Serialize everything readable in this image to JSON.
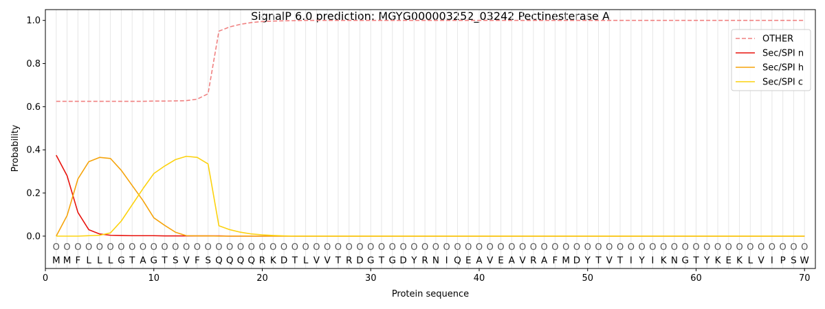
{
  "chart_data": {
    "type": "line",
    "title": "SignalP 6.0 prediction: MGYG000003252_03242 Pectinesterase A",
    "xlabel": "Protein sequence",
    "ylabel": "Probability",
    "xlim": [
      0,
      71
    ],
    "ylim": [
      -0.15,
      1.05
    ],
    "x_ticks": [
      0,
      10,
      20,
      30,
      40,
      50,
      60,
      70
    ],
    "y_ticks": [
      0.0,
      0.2,
      0.4,
      0.6,
      0.8,
      1.0
    ],
    "x_tick_labels": [
      "0",
      "10",
      "20",
      "30",
      "40",
      "50",
      "60",
      "70"
    ],
    "y_tick_labels": [
      "0.0",
      "0.2",
      "0.4",
      "0.6",
      "0.8",
      "1.0"
    ],
    "grid": "vertical lines at each residue",
    "legend_position": "top-right",
    "sequence": [
      "M",
      "M",
      "F",
      "L",
      "L",
      "L",
      "G",
      "T",
      "A",
      "G",
      "T",
      "S",
      "V",
      "F",
      "S",
      "Q",
      "Q",
      "Q",
      "Q",
      "R",
      "K",
      "D",
      "T",
      "L",
      "V",
      "V",
      "T",
      "R",
      "D",
      "G",
      "T",
      "G",
      "D",
      "Y",
      "R",
      "N",
      "I",
      "Q",
      "E",
      "A",
      "V",
      "E",
      "A",
      "V",
      "R",
      "A",
      "F",
      "M",
      "D",
      "Y",
      "T",
      "V",
      "T",
      "I",
      "Y",
      "I",
      "K",
      "N",
      "G",
      "T",
      "Y",
      "K",
      "E",
      "K",
      "L",
      "V",
      "I",
      "P",
      "S",
      "W"
    ],
    "predictions": [
      "O",
      "O",
      "O",
      "O",
      "O",
      "O",
      "O",
      "O",
      "O",
      "O",
      "O",
      "O",
      "O",
      "O",
      "O",
      "O",
      "O",
      "O",
      "O",
      "O",
      "O",
      "O",
      "O",
      "O",
      "O",
      "O",
      "O",
      "O",
      "O",
      "O",
      "O",
      "O",
      "O",
      "O",
      "O",
      "O",
      "O",
      "O",
      "O",
      "O",
      "O",
      "O",
      "O",
      "O",
      "O",
      "O",
      "O",
      "O",
      "O",
      "O",
      "O",
      "O",
      "O",
      "O",
      "O",
      "O",
      "O",
      "O",
      "O",
      "O",
      "O",
      "O",
      "O",
      "O",
      "O",
      "O",
      "O",
      "O",
      "O",
      "O"
    ],
    "series": [
      {
        "name": "OTHER",
        "color": "#f08080",
        "dashed": true,
        "values": [
          0.625,
          0.625,
          0.625,
          0.625,
          0.625,
          0.625,
          0.625,
          0.625,
          0.625,
          0.626,
          0.626,
          0.627,
          0.628,
          0.635,
          0.66,
          0.95,
          0.97,
          0.982,
          0.99,
          0.995,
          0.997,
          0.998,
          0.999,
          1.0,
          1.0,
          1.0,
          1.0,
          1.0,
          1.0,
          1.0,
          1.0,
          1.0,
          1.0,
          1.0,
          1.0,
          1.0,
          1.0,
          1.0,
          1.0,
          1.0,
          1.0,
          1.0,
          1.0,
          1.0,
          1.0,
          1.0,
          1.0,
          1.0,
          1.0,
          1.0,
          1.0,
          1.0,
          1.0,
          1.0,
          1.0,
          1.0,
          1.0,
          1.0,
          1.0,
          1.0,
          1.0,
          1.0,
          1.0,
          1.0,
          1.0,
          1.0,
          1.0,
          1.0,
          1.0,
          1.0
        ]
      },
      {
        "name": "Sec/SPI n",
        "color": "#e8120c",
        "dashed": false,
        "values": [
          0.375,
          0.28,
          0.11,
          0.03,
          0.01,
          0.004,
          0.003,
          0.002,
          0.002,
          0.002,
          0.001,
          0.001,
          0.001,
          0.001,
          0.001,
          0.001,
          0.0,
          0.0,
          0.0,
          0.0,
          0.0,
          0.0,
          0.0,
          0.0,
          0.0,
          0.0,
          0.0,
          0.0,
          0.0,
          0.0,
          0.0,
          0.0,
          0.0,
          0.0,
          0.0,
          0.0,
          0.0,
          0.0,
          0.0,
          0.0,
          0.0,
          0.0,
          0.0,
          0.0,
          0.0,
          0.0,
          0.0,
          0.0,
          0.0,
          0.0,
          0.0,
          0.0,
          0.0,
          0.0,
          0.0,
          0.0,
          0.0,
          0.0,
          0.0,
          0.0,
          0.0,
          0.0,
          0.0,
          0.0,
          0.0,
          0.0,
          0.0,
          0.0,
          0.0,
          0.0
        ]
      },
      {
        "name": "Sec/SPI h",
        "color": "#f5a30a",
        "dashed": false,
        "values": [
          0.0,
          0.095,
          0.265,
          0.345,
          0.365,
          0.36,
          0.305,
          0.235,
          0.165,
          0.085,
          0.05,
          0.018,
          0.002,
          0.001,
          0.001,
          0.0,
          0.0,
          0.0,
          0.0,
          0.0,
          0.0,
          0.0,
          0.0,
          0.0,
          0.0,
          0.0,
          0.0,
          0.0,
          0.0,
          0.0,
          0.0,
          0.0,
          0.0,
          0.0,
          0.0,
          0.0,
          0.0,
          0.0,
          0.0,
          0.0,
          0.0,
          0.0,
          0.0,
          0.0,
          0.0,
          0.0,
          0.0,
          0.0,
          0.0,
          0.0,
          0.0,
          0.0,
          0.0,
          0.0,
          0.0,
          0.0,
          0.0,
          0.0,
          0.0,
          0.0,
          0.0,
          0.0,
          0.0,
          0.0,
          0.0,
          0.0,
          0.0,
          0.0,
          0.0,
          0.0
        ]
      },
      {
        "name": "Sec/SPI c",
        "color": "#fcd20d",
        "dashed": false,
        "values": [
          0.0,
          0.0,
          0.0,
          0.002,
          0.004,
          0.015,
          0.07,
          0.145,
          0.22,
          0.29,
          0.325,
          0.355,
          0.37,
          0.365,
          0.335,
          0.048,
          0.03,
          0.018,
          0.01,
          0.006,
          0.003,
          0.001,
          0.0,
          0.0,
          0.0,
          0.0,
          0.0,
          0.0,
          0.0,
          0.0,
          0.0,
          0.0,
          0.0,
          0.0,
          0.0,
          0.0,
          0.0,
          0.0,
          0.0,
          0.0,
          0.0,
          0.0,
          0.0,
          0.0,
          0.0,
          0.0,
          0.0,
          0.0,
          0.0,
          0.0,
          0.0,
          0.0,
          0.0,
          0.0,
          0.0,
          0.0,
          0.0,
          0.0,
          0.0,
          0.0,
          0.0,
          0.0,
          0.0,
          0.0,
          0.0,
          0.0,
          0.0,
          0.0,
          0.0,
          0.0
        ]
      }
    ]
  }
}
